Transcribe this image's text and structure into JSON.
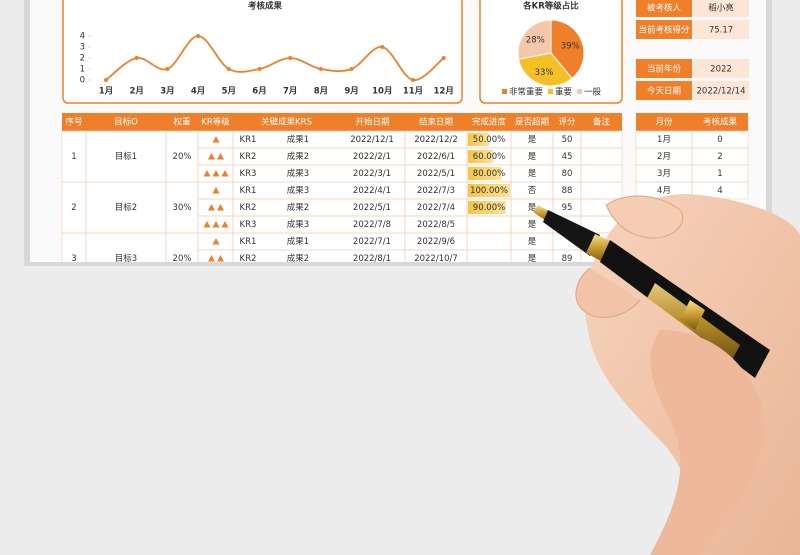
{
  "chart_data": [
    {
      "type": "line",
      "title": "考核成果",
      "categories": [
        "1月",
        "2月",
        "3月",
        "4月",
        "5月",
        "6月",
        "7月",
        "8月",
        "9月",
        "10月",
        "11月",
        "12月"
      ],
      "values": [
        0,
        2,
        1,
        4,
        1,
        1,
        2,
        1,
        1,
        3,
        0,
        2
      ],
      "color": "#f07f2a",
      "ylim": [
        0,
        4
      ],
      "yticks": [
        0,
        1,
        2,
        3,
        4
      ]
    },
    {
      "type": "pie",
      "title": "各KR等级占比",
      "categories": [
        "非常重要",
        "重要",
        "一般"
      ],
      "values": [
        39,
        33,
        28
      ],
      "value_labels": [
        "39%",
        "33%",
        "28%"
      ],
      "colors": [
        "#f07f2a",
        "#f5c026",
        "#f6c7aa"
      ],
      "legend": "bottom"
    }
  ],
  "info": [
    {
      "label": "被考核人",
      "value": "稻小亮"
    },
    {
      "label": "当前考核得分",
      "value": "75.17"
    },
    {
      "label": "当前年份",
      "value": "2022"
    },
    {
      "label": "今天日期",
      "value": "2022/12/14"
    }
  ],
  "table": {
    "headers": [
      "序号",
      "目标O",
      "权重",
      "KR等级",
      "关键成果KRS",
      "开始日期",
      "结束日期",
      "完成进度",
      "是否超期",
      "评分",
      "备注"
    ],
    "groups": [
      {
        "no": "1",
        "goal": "目标1",
        "weight": "20%",
        "rows": [
          {
            "level": 1,
            "kr": "KR1",
            "result": "成果1",
            "start": "2022/12/1",
            "end": "2022/12/2",
            "progress": {
              "value": 50,
              "label": "50.00%"
            },
            "overdue": "是",
            "score": "50"
          },
          {
            "level": 2,
            "kr": "KR2",
            "result": "成果2",
            "start": "2022/2/1",
            "end": "2022/6/1",
            "progress": {
              "value": 60,
              "label": "60.00%"
            },
            "overdue": "是",
            "score": "45"
          },
          {
            "level": 3,
            "kr": "KR3",
            "result": "成果3",
            "start": "2022/3/1",
            "end": "2022/5/1",
            "progress": {
              "value": 80,
              "label": "80.00%"
            },
            "overdue": "是",
            "score": "80"
          }
        ]
      },
      {
        "no": "2",
        "goal": "目标2",
        "weight": "30%",
        "rows": [
          {
            "level": 1,
            "kr": "KR1",
            "result": "成果3",
            "start": "2022/4/1",
            "end": "2022/7/3",
            "progress": {
              "value": 100,
              "label": "100.00%"
            },
            "overdue": "否",
            "score": "88"
          },
          {
            "level": 2,
            "kr": "KR2",
            "result": "成果2",
            "start": "2022/5/1",
            "end": "2022/7/4",
            "progress": {
              "value": 90,
              "label": "90.00%"
            },
            "overdue": "是",
            "score": "95"
          },
          {
            "level": 3,
            "kr": "KR3",
            "result": "成果3",
            "start": "2022/7/8",
            "end": "2022/8/5",
            "overdue": "是"
          }
        ]
      },
      {
        "no": "3",
        "goal": "目标3",
        "weight": "20%",
        "rows": [
          {
            "level": 1,
            "kr": "KR1",
            "result": "成果1",
            "start": "2022/7/1",
            "end": "2022/9/6",
            "overdue": "是"
          },
          {
            "level": 2,
            "kr": "KR2",
            "result": "成果2",
            "start": "2022/8/1",
            "end": "2022/10/7",
            "overdue": "是",
            "score": "89"
          }
        ]
      }
    ]
  },
  "month_table": {
    "headers": [
      "月份",
      "考核成果"
    ],
    "rows": [
      [
        "1月",
        "0"
      ],
      [
        "2月",
        "2"
      ],
      [
        "3月",
        "1"
      ],
      [
        "4月",
        "4"
      ]
    ]
  }
}
